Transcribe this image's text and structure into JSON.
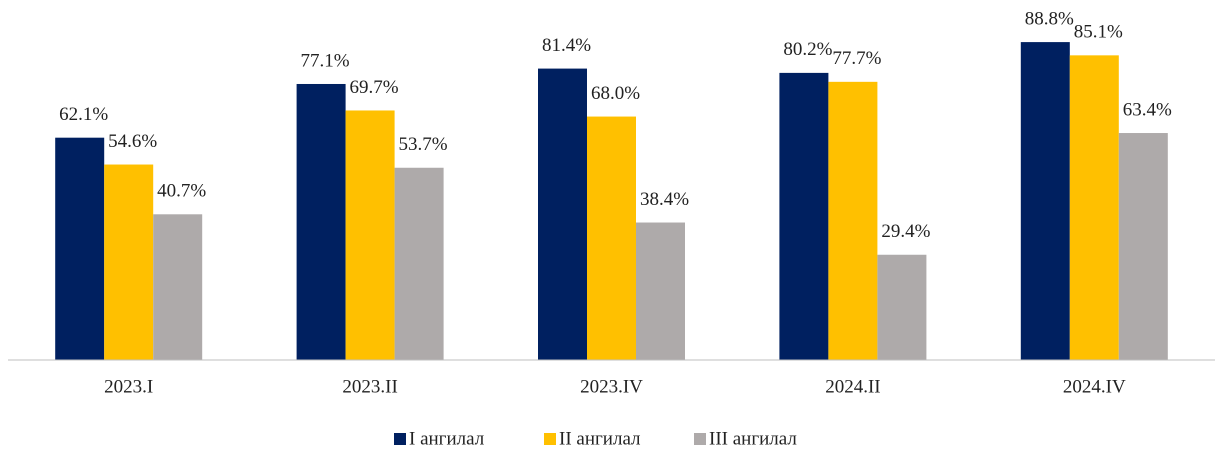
{
  "chart_data": {
    "type": "bar",
    "categories": [
      "2023.I",
      "2023.II",
      "2023.IV",
      "2024.II",
      "2024.IV"
    ],
    "series": [
      {
        "name": "I ангилал",
        "color": "#002060",
        "values": [
          62.1,
          77.1,
          81.4,
          80.2,
          88.8
        ],
        "value_labels": [
          "62.1%",
          "77.1%",
          "81.4%",
          "80.2%",
          "88.8%"
        ]
      },
      {
        "name": "II ангилал",
        "color": "#FFC000",
        "values": [
          54.6,
          69.7,
          68.0,
          77.7,
          85.1
        ],
        "value_labels": [
          "54.6%",
          "69.7%",
          "68.0%",
          "77.7%",
          "85.1%"
        ]
      },
      {
        "name": "III ангилал",
        "color": "#AEAAAA",
        "values": [
          40.7,
          53.7,
          38.4,
          29.4,
          63.4
        ],
        "value_labels": [
          "40.7%",
          "53.7%",
          "38.4%",
          "29.4%",
          "63.4%"
        ]
      }
    ],
    "ylim": [
      0,
      100
    ],
    "legend": "bottom"
  }
}
